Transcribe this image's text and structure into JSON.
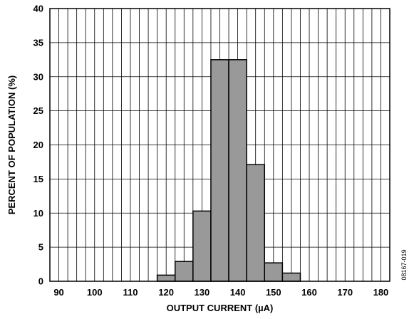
{
  "chart_data": {
    "type": "bar",
    "title": "",
    "xlabel": "OUTPUT CURRENT (µA)",
    "ylabel": "PERCENT OF POPULATION (%)",
    "xlim": [
      87.5,
      182.5
    ],
    "ylim": [
      0,
      40
    ],
    "x_ticks": [
      "90",
      "100",
      "110",
      "120",
      "130",
      "140",
      "150",
      "160",
      "170",
      "180"
    ],
    "y_ticks": [
      "0",
      "5",
      "10",
      "15",
      "20",
      "25",
      "30",
      "35",
      "40"
    ],
    "bin_width": 5,
    "bins": [
      {
        "x": 120,
        "value": 0.9
      },
      {
        "x": 125,
        "value": 2.9
      },
      {
        "x": 130,
        "value": 10.3
      },
      {
        "x": 135,
        "value": 32.5
      },
      {
        "x": 140,
        "value": 32.5
      },
      {
        "x": 145,
        "value": 17.1
      },
      {
        "x": 150,
        "value": 2.7
      },
      {
        "x": 155,
        "value": 1.2
      }
    ],
    "grid": true,
    "bar_color": "#999999"
  },
  "figure_id": "08167-019"
}
